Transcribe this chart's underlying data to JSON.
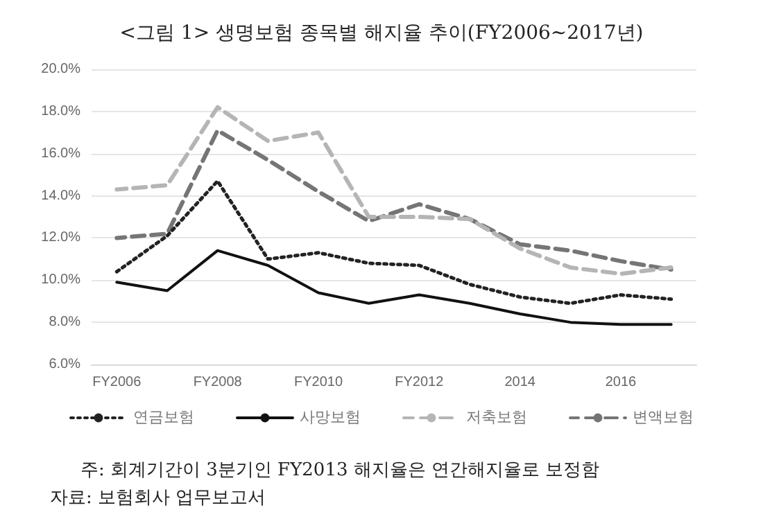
{
  "chart_data": {
    "type": "line",
    "title": "<그림 1> 생명보험 종목별 해지율 추이(FY2006~2017년)",
    "categories": [
      "FY2006",
      null,
      "FY2008",
      null,
      "FY2010",
      null,
      "FY2012",
      null,
      "2014",
      null,
      "2016",
      null
    ],
    "series": [
      {
        "name": "연금보험",
        "color": "#222222",
        "line_style": "dotted",
        "values": [
          10.4,
          12.1,
          14.7,
          11.0,
          11.3,
          10.8,
          10.7,
          9.8,
          9.2,
          8.9,
          9.3,
          9.1
        ]
      },
      {
        "name": "사망보험",
        "color": "#111111",
        "line_style": "solid",
        "values": [
          9.9,
          9.5,
          11.4,
          10.7,
          9.4,
          8.9,
          9.3,
          8.9,
          8.4,
          8.0,
          7.9,
          7.9
        ]
      },
      {
        "name": "저축보험",
        "color": "#b5b5b5",
        "line_style": "dashed",
        "values": [
          14.3,
          14.5,
          18.2,
          16.6,
          17.0,
          13.0,
          13.0,
          12.9,
          11.5,
          10.6,
          10.3,
          10.6
        ]
      },
      {
        "name": "변액보험",
        "color": "#757575",
        "line_style": "dashed",
        "values": [
          12.0,
          12.2,
          17.1,
          15.7,
          14.2,
          12.8,
          13.6,
          12.9,
          11.7,
          11.4,
          10.9,
          10.5
        ]
      }
    ],
    "ylim": [
      6,
      20
    ],
    "yticks": [
      {
        "value": 6,
        "label": "6.0%"
      },
      {
        "value": 8,
        "label": "8.0%"
      },
      {
        "value": 10,
        "label": "10.0%"
      },
      {
        "value": 12,
        "label": "12.0%"
      },
      {
        "value": 14,
        "label": "14.0%"
      },
      {
        "value": 16,
        "label": "16.0%"
      },
      {
        "value": 18,
        "label": "18.0%"
      },
      {
        "value": 20,
        "label": "20.0%"
      }
    ],
    "grid": "y",
    "legend": "bottom",
    "marker": "none",
    "annotations": [
      "주: 회계기간이 3분기인 FY2013 해지율은 연간해지율로 보정함",
      "자료: 보험회사 업무보고서"
    ]
  }
}
